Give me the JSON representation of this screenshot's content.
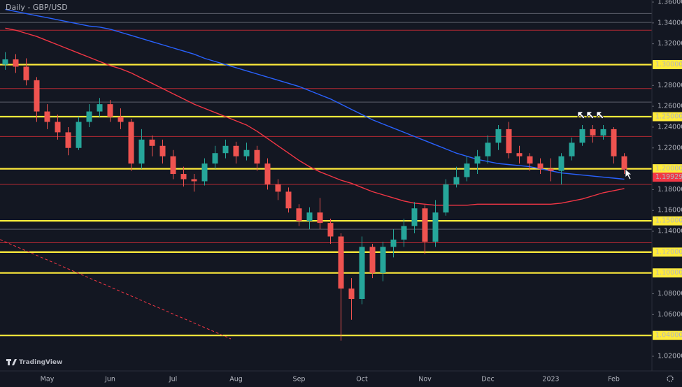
{
  "chart_data": {
    "type": "candlestick",
    "title": "Daily - GBP/USD",
    "watermark": "TradingView",
    "categories": [
      null,
      null,
      null,
      null,
      "May",
      null,
      null,
      null,
      null,
      null,
      "Jun",
      null,
      null,
      null,
      null,
      null,
      "Jul",
      null,
      null,
      null,
      null,
      null,
      "Aug",
      null,
      null,
      null,
      null,
      null,
      "Sep",
      null,
      null,
      null,
      null,
      null,
      "Oct",
      null,
      null,
      null,
      null,
      null,
      "Nov",
      null,
      null,
      null,
      null,
      null,
      "Dec",
      null,
      null,
      null,
      null,
      null,
      "2023",
      null,
      null,
      null,
      null,
      null,
      "Feb",
      null
    ],
    "open": [
      1.3,
      1.305,
      1.298,
      1.285,
      1.255,
      1.245,
      1.235,
      1.22,
      1.245,
      1.255,
      1.262,
      1.25,
      1.245,
      1.205,
      1.228,
      1.222,
      1.212,
      1.195,
      1.19,
      1.188,
      1.205,
      1.215,
      1.222,
      1.212,
      1.218,
      1.205,
      1.185,
      1.178,
      1.162,
      1.15,
      1.158,
      1.148,
      1.135,
      1.085,
      1.075,
      1.125,
      1.1,
      1.125,
      1.132,
      1.145,
      1.162,
      1.13,
      1.158,
      1.185,
      1.192,
      1.205,
      1.212,
      1.225,
      1.238,
      1.215,
      1.212,
      1.205,
      1.2,
      1.198,
      1.212,
      1.225,
      1.238,
      1.232,
      1.238,
      1.212
    ],
    "high": [
      1.312,
      1.31,
      1.306,
      1.288,
      1.262,
      1.252,
      1.24,
      1.25,
      1.262,
      1.268,
      1.266,
      1.258,
      1.248,
      1.238,
      1.232,
      1.228,
      1.218,
      1.202,
      1.195,
      1.21,
      1.222,
      1.228,
      1.226,
      1.225,
      1.222,
      1.21,
      1.19,
      1.182,
      1.166,
      1.163,
      1.172,
      1.152,
      1.138,
      1.095,
      1.135,
      1.128,
      1.13,
      1.142,
      1.152,
      1.168,
      1.165,
      1.17,
      1.19,
      1.202,
      1.212,
      1.218,
      1.232,
      1.242,
      1.245,
      1.222,
      1.215,
      1.21,
      1.21,
      1.215,
      1.23,
      1.242,
      1.242,
      1.242,
      1.24,
      1.215
    ],
    "low": [
      1.295,
      1.292,
      1.28,
      1.245,
      1.238,
      1.228,
      1.213,
      1.218,
      1.24,
      1.25,
      1.245,
      1.238,
      1.198,
      1.2,
      1.212,
      1.205,
      1.19,
      1.183,
      1.178,
      1.184,
      1.2,
      1.21,
      1.205,
      1.208,
      1.198,
      1.18,
      1.17,
      1.158,
      1.145,
      1.142,
      1.142,
      1.128,
      1.035,
      1.055,
      1.07,
      1.095,
      1.092,
      1.115,
      1.125,
      1.138,
      1.118,
      1.125,
      1.155,
      1.182,
      1.188,
      1.195,
      1.205,
      1.218,
      1.21,
      1.205,
      1.198,
      1.195,
      1.188,
      1.185,
      1.208,
      1.222,
      1.225,
      1.228,
      1.205,
      1.195
    ],
    "close": [
      1.305,
      1.298,
      1.285,
      1.255,
      1.245,
      1.235,
      1.22,
      1.245,
      1.255,
      1.262,
      1.25,
      1.245,
      1.205,
      1.228,
      1.222,
      1.212,
      1.195,
      1.19,
      1.188,
      1.205,
      1.215,
      1.222,
      1.212,
      1.218,
      1.205,
      1.185,
      1.178,
      1.162,
      1.15,
      1.158,
      1.148,
      1.135,
      1.085,
      1.075,
      1.125,
      1.1,
      1.125,
      1.132,
      1.145,
      1.162,
      1.13,
      1.158,
      1.185,
      1.192,
      1.205,
      1.212,
      1.225,
      1.238,
      1.215,
      1.212,
      1.205,
      1.2,
      1.198,
      1.212,
      1.225,
      1.238,
      1.232,
      1.238,
      1.212,
      1.19929
    ],
    "up_color": "#26a69a",
    "down_color": "#ef5350",
    "moving_averages": [
      {
        "color": "#2962ff",
        "values": [
          1.353,
          1.351,
          1.349,
          1.347,
          1.345,
          1.343,
          1.341,
          1.339,
          1.337,
          1.336,
          1.334,
          1.331,
          1.328,
          1.325,
          1.322,
          1.319,
          1.316,
          1.313,
          1.31,
          1.306,
          1.303,
          1.3,
          1.297,
          1.294,
          1.291,
          1.288,
          1.285,
          1.282,
          1.279,
          1.275,
          1.271,
          1.267,
          1.262,
          1.257,
          1.252,
          1.247,
          1.243,
          1.239,
          1.235,
          1.231,
          1.227,
          1.223,
          1.219,
          1.215,
          1.212,
          1.209,
          1.207,
          1.205,
          1.204,
          1.203,
          1.202,
          1.2,
          1.198,
          1.196,
          1.195,
          1.194,
          1.193,
          1.192,
          1.191,
          1.19
        ]
      },
      {
        "color": "#f23645",
        "values": [
          1.335,
          1.333,
          1.33,
          1.327,
          1.323,
          1.319,
          1.315,
          1.311,
          1.307,
          1.303,
          1.299,
          1.296,
          1.292,
          1.287,
          1.282,
          1.277,
          1.272,
          1.267,
          1.262,
          1.258,
          1.254,
          1.25,
          1.246,
          1.242,
          1.236,
          1.229,
          1.222,
          1.215,
          1.208,
          1.202,
          1.197,
          1.193,
          1.189,
          1.186,
          1.182,
          1.178,
          1.175,
          1.172,
          1.169,
          1.167,
          1.166,
          1.165,
          1.165,
          1.165,
          1.165,
          1.166,
          1.166,
          1.166,
          1.166,
          1.166,
          1.166,
          1.166,
          1.166,
          1.167,
          1.169,
          1.171,
          1.174,
          1.177,
          1.179,
          1.181
        ]
      }
    ],
    "levels": [
      {
        "value": 1.3,
        "label": "1.30000",
        "color": "#ffeb3b"
      },
      {
        "value": 1.25,
        "label": "1.25000",
        "color": "#ffeb3b"
      },
      {
        "value": 1.2,
        "label": "1.20000",
        "color": "#ffeb3b"
      },
      {
        "value": 1.15,
        "label": "1.15000",
        "color": "#ffeb3b"
      },
      {
        "value": 1.12,
        "label": "1.12000",
        "color": "#ffeb3b"
      },
      {
        "value": 1.1,
        "label": "1.10000",
        "color": "#ffeb3b"
      },
      {
        "value": 1.04,
        "label": "1.04000",
        "color": "#ffeb3b"
      },
      {
        "value": 1.333,
        "color": "#b22833"
      },
      {
        "value": 1.277,
        "color": "#b22833"
      },
      {
        "value": 1.231,
        "color": "#b22833"
      },
      {
        "value": 1.185,
        "color": "#b22833"
      },
      {
        "value": 1.129,
        "color": "#b22833"
      },
      {
        "value": 1.349,
        "color": "#5d606b"
      },
      {
        "value": 1.3405,
        "color": "#5d606b"
      },
      {
        "value": 1.264,
        "color": "#5d606b"
      },
      {
        "value": 1.142,
        "color": "#5d606b"
      }
    ],
    "last_price": {
      "value": 1.19929,
      "label": "1.19929",
      "color": "#f23645"
    },
    "ylim": [
      1.02,
      1.36
    ],
    "yticks": [
      {
        "value": 1.36,
        "label": "1.36000"
      },
      {
        "value": 1.34,
        "label": "1.34000"
      },
      {
        "value": 1.32,
        "label": "1.32000"
      },
      {
        "value": 1.28,
        "label": "1.28000"
      },
      {
        "value": 1.26,
        "label": "1.26000"
      },
      {
        "value": 1.24,
        "label": "1.24000"
      },
      {
        "value": 1.22,
        "label": "1.22000"
      },
      {
        "value": 1.18,
        "label": "1.18000"
      },
      {
        "value": 1.16,
        "label": "1.16000"
      },
      {
        "value": 1.14,
        "label": "1.14000"
      },
      {
        "value": 1.08,
        "label": "1.08000"
      },
      {
        "value": 1.06,
        "label": "1.06000"
      },
      {
        "value": 1.02,
        "label": "1.02000"
      }
    ]
  }
}
